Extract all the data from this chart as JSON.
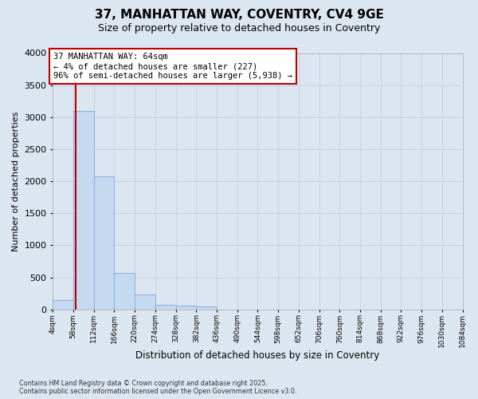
{
  "title_line1": "37, MANHATTAN WAY, COVENTRY, CV4 9GE",
  "title_line2": "Size of property relative to detached houses in Coventry",
  "xlabel": "Distribution of detached houses by size in Coventry",
  "ylabel": "Number of detached properties",
  "annotation_line1": "37 MANHATTAN WAY: 64sqm",
  "annotation_line2": "← 4% of detached houses are smaller (227)",
  "annotation_line3": "96% of semi-detached houses are larger (5,938) →",
  "property_size_sqm": 64,
  "bins": [
    4,
    58,
    112,
    166,
    220,
    274,
    328,
    382,
    436,
    490,
    544,
    598,
    652,
    706,
    760,
    814,
    868,
    922,
    976,
    1030,
    1084
  ],
  "bar_heights": [
    150,
    3100,
    2080,
    570,
    230,
    75,
    55,
    45,
    0,
    0,
    0,
    0,
    0,
    0,
    0,
    0,
    0,
    0,
    0,
    0
  ],
  "bar_color": "#c5d9f1",
  "bar_edge_color": "#8db4e2",
  "vline_color": "#c00000",
  "annotation_box_edgecolor": "#c00000",
  "annotation_fill": "#ffffff",
  "background_color": "#dce6f1",
  "grid_color": "#c8d4e8",
  "ylim": [
    0,
    4000
  ],
  "yticks": [
    0,
    500,
    1000,
    1500,
    2000,
    2500,
    3000,
    3500,
    4000
  ],
  "footer_line1": "Contains HM Land Registry data © Crown copyright and database right 2025.",
  "footer_line2": "Contains public sector information licensed under the Open Government Licence v3.0."
}
